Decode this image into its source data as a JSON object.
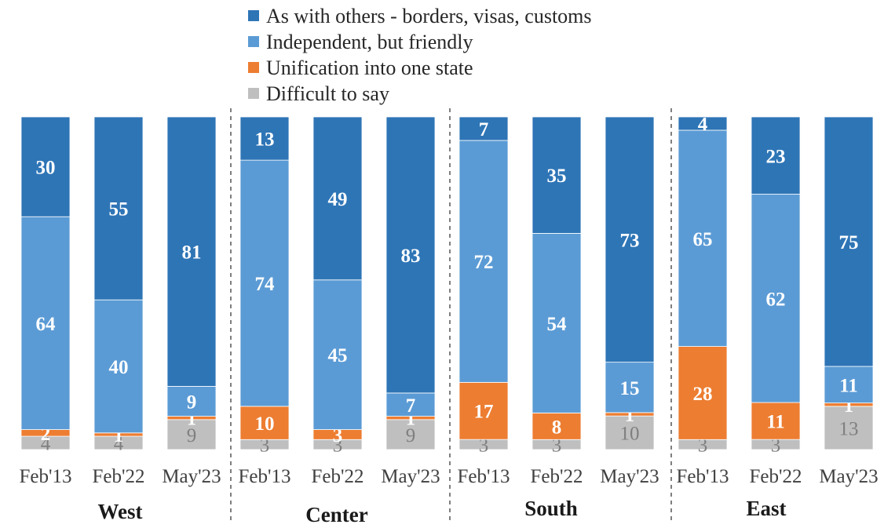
{
  "chart_data": {
    "type": "bar",
    "stacked": true,
    "percent": true,
    "title": "",
    "xlabel": "",
    "ylabel": "",
    "ylim": [
      0,
      100
    ],
    "legend_position": "top",
    "groups": [
      {
        "name": "West",
        "categories": [
          "Feb'13",
          "Feb'22",
          "May'23"
        ]
      },
      {
        "name": "Center",
        "categories": [
          "Feb'13",
          "Feb'22",
          "May'23"
        ]
      },
      {
        "name": "South",
        "categories": [
          "Feb'13",
          "Feb'22",
          "May'23"
        ]
      },
      {
        "name": "East",
        "categories": [
          "Feb'13",
          "Feb'22",
          "May'23"
        ]
      }
    ],
    "series": [
      {
        "name": "Difficult to say",
        "color": "#bfbfbf",
        "values": [
          4,
          4,
          9,
          3,
          3,
          9,
          3,
          3,
          10,
          3,
          3,
          13
        ]
      },
      {
        "name": "Unification into one state",
        "color": "#ed7d31",
        "values": [
          2,
          1,
          1,
          10,
          3,
          1,
          17,
          8,
          1,
          28,
          11,
          1
        ]
      },
      {
        "name": "Independent, but friendly",
        "color": "#5b9bd5",
        "values": [
          64,
          40,
          9,
          74,
          45,
          7,
          72,
          54,
          15,
          65,
          62,
          11
        ]
      },
      {
        "name": "As with others - borders, visas, customs",
        "color": "#2e75b6",
        "values": [
          30,
          55,
          81,
          13,
          49,
          83,
          7,
          35,
          73,
          4,
          23,
          75
        ]
      }
    ],
    "legend_order": [
      3,
      2,
      1,
      0
    ]
  }
}
